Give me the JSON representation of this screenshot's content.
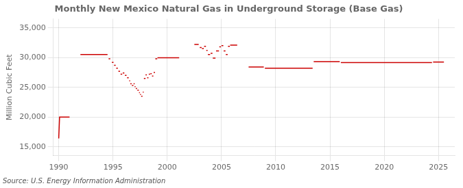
{
  "chart_data": {
    "type": "line",
    "title": "Monthly New Mexico Natural Gas in Underground Storage (Base Gas)",
    "ylabel": "Million Cubic Feet",
    "annotations": [
      "Source: U.S. Energy Information Administration"
    ],
    "xlim": [
      1989.5,
      2026.5
    ],
    "ylim": [
      13500,
      36500
    ],
    "xticks": [
      1990,
      1995,
      2000,
      2005,
      2010,
      2015,
      2020,
      2025
    ],
    "yticks": [
      {
        "value": 15000,
        "label": "15,000"
      },
      {
        "value": 20000,
        "label": "20,000"
      },
      {
        "value": 25000,
        "label": "25,000"
      },
      {
        "value": 30000,
        "label": "30,000"
      },
      {
        "value": 35000,
        "label": "35,000"
      }
    ],
    "grid": true,
    "color": "#CC0000",
    "x": [
      1990.0,
      1990.08,
      1991.0,
      1991.08,
      1992.0,
      1992.0,
      1994.5,
      1994.5,
      1994.6,
      1994.6,
      1994.75,
      1994.75,
      1994.9,
      1994.9,
      1995.05,
      1995.05,
      1995.1,
      1995.1,
      1995.25,
      1995.25,
      1995.3,
      1995.3,
      1995.45,
      1995.45,
      1995.5,
      1995.5,
      1995.65,
      1995.65,
      1995.7,
      1995.7,
      1995.85,
      1995.85,
      1995.9,
      1995.9,
      1996.05,
      1996.05,
      1996.1,
      1996.1,
      1996.25,
      1996.25,
      1996.3,
      1996.3,
      1996.45,
      1996.45,
      1996.5,
      1996.5,
      1996.58,
      1996.58,
      1996.6,
      1996.6,
      1996.72,
      1996.72,
      1996.75,
      1996.75,
      1996.88,
      1996.88,
      1996.9,
      1996.9,
      1997.0,
      1997.0,
      1997.0,
      1997.0,
      1997.08,
      1997.08,
      1997.1,
      1997.1,
      1997.22,
      1997.22,
      1997.25,
      1997.25,
      1997.38,
      1997.38,
      1997.4,
      1997.4,
      1997.48,
      1997.48,
      1997.5,
      1997.5,
      1997.58,
      1997.58,
      1997.6,
      1997.6,
      1997.72,
      1997.72,
      1997.75,
      1997.75,
      1997.83,
      1997.83,
      1997.85,
      1997.85,
      1998.0,
      1998.0,
      1998.0,
      1998.0,
      1998.12,
      1998.12,
      1998.15,
      1998.15,
      1998.27,
      1998.27,
      1998.3,
      1998.3,
      1998.42,
      1998.42,
      1998.45,
      1998.45,
      1998.57,
      1998.57,
      1998.6,
      1998.6,
      1998.72,
      1998.72,
      1998.75,
      1998.75,
      1998.87,
      1998.87,
      1998.9,
      1998.9,
      1999.08,
      1999.08,
      1999.1,
      1999.1,
      2001.1,
      2001.1,
      2002.5,
      2002.5,
      2002.9,
      2002.9,
      2003.0,
      2003.0,
      2003.17,
      2003.17,
      2003.2,
      2003.2,
      2003.37,
      2003.37,
      2003.4,
      2003.4,
      2003.57,
      2003.57,
      2003.6,
      2003.6,
      2003.72,
      2003.72,
      2003.75,
      2003.75,
      2003.95,
      2003.95,
      2004.0,
      2004.0,
      2004.17,
      2004.17,
      2004.2,
      2004.2,
      2004.45,
      2004.45,
      2004.5,
      2004.5,
      2004.77,
      2004.77,
      2004.8,
      2004.8,
      2004.95,
      2004.95,
      2005.0,
      2005.0,
      2005.17,
      2005.17,
      2005.2,
      2005.2,
      2005.37,
      2005.37,
      2005.4,
      2005.4,
      2005.57,
      2005.57,
      2005.6,
      2005.6,
      2005.77,
      2005.77,
      2005.8,
      2005.8,
      2006.45,
      2006.45,
      2007.5,
      2007.5,
      2008.9,
      2008.9,
      2009.0,
      2009.0,
      2013.4,
      2013.4,
      2013.5,
      2013.5,
      2015.9,
      2015.9,
      2016.0,
      2016.0,
      2024.4,
      2024.4,
      2024.5,
      2024.5,
      2025.5
    ],
    "values": [
      16400,
      20000,
      20000,
      null,
      null,
      30500,
      30500,
      null,
      null,
      29800,
      29800,
      null,
      null,
      29200,
      29200,
      null,
      null,
      28700,
      28700,
      null,
      null,
      28200,
      28200,
      null,
      null,
      27700,
      27700,
      null,
      null,
      27200,
      27200,
      null,
      null,
      27400,
      27400,
      null,
      null,
      27000,
      27000,
      null,
      null,
      26600,
      26600,
      null,
      null,
      26100,
      26100,
      null,
      null,
      25600,
      25600,
      null,
      null,
      25300,
      25300,
      null,
      null,
      25600,
      25600,
      null,
      null,
      25100,
      25100,
      null,
      null,
      24800,
      24800,
      null,
      null,
      24500,
      24500,
      null,
      null,
      24100,
      24100,
      null,
      null,
      23800,
      23800,
      null,
      null,
      23500,
      23500,
      null,
      null,
      24200,
      24200,
      null,
      null,
      26500,
      26500,
      null,
      null,
      27100,
      27100,
      null,
      null,
      26600,
      26600,
      null,
      null,
      27200,
      27200,
      null,
      null,
      27300,
      27300,
      null,
      null,
      26900,
      26900,
      null,
      null,
      27500,
      27500,
      null,
      null,
      29800,
      29800,
      null,
      null,
      29950,
      29950,
      null,
      null,
      32200,
      32200,
      null,
      null,
      31700,
      31700,
      null,
      null,
      31500,
      31500,
      null,
      null,
      31900,
      31900,
      null,
      null,
      31200,
      31200,
      null,
      null,
      30500,
      30500,
      null,
      null,
      30700,
      30700,
      null,
      null,
      29900,
      29900,
      null,
      null,
      31100,
      31100,
      null,
      null,
      31800,
      31800,
      null,
      null,
      32000,
      32000,
      null,
      null,
      31100,
      31100,
      null,
      null,
      30500,
      30500,
      null,
      null,
      31900,
      31900,
      null,
      null,
      32100,
      32100,
      null,
      null,
      28400,
      28400,
      null,
      null,
      28200,
      28200,
      null,
      null,
      29300,
      29300,
      null,
      null,
      29150,
      29150,
      null,
      null,
      29250,
      29250
    ]
  }
}
